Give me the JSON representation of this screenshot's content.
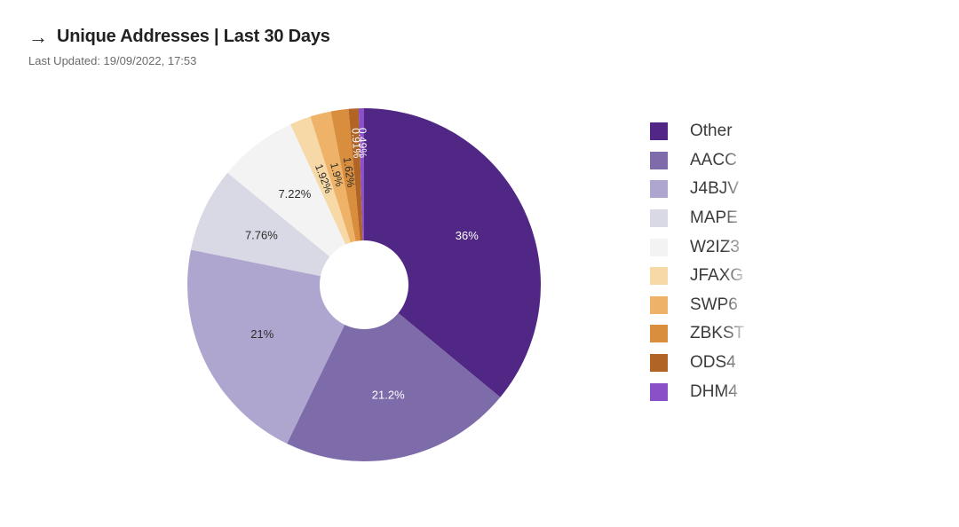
{
  "header": {
    "arrow_icon": "arrow-right-icon",
    "title": "Unique Addresses | Last 30 Days",
    "last_updated": "Last Updated: 19/09/2022, 17:53"
  },
  "chart_data": {
    "type": "pie",
    "style": "donut",
    "labels": [
      "Other",
      "AACC",
      "J4BJV",
      "MAPE",
      "W2IZ3",
      "JFAXG",
      "SWP6",
      "ZBKST",
      "ODS4",
      "DHM4"
    ],
    "values": [
      36,
      21.2,
      21,
      7.76,
      7.22,
      1.92,
      1.9,
      1.62,
      0.91,
      0.49
    ],
    "value_labels": [
      "36%",
      "21.2%",
      "21%",
      "7.76%",
      "7.22%",
      "1.92%",
      "1.9%",
      "1.62%",
      "0.91%",
      "0.49%"
    ],
    "colors": [
      "#512785",
      "#7e6ba9",
      "#afa6cf",
      "#d9d8e5",
      "#f3f3f3",
      "#f6d9a6",
      "#eeb268",
      "#d98e3e",
      "#b06425",
      "#8a50c8"
    ],
    "label_colors": [
      "#ffffff",
      "#ffffff",
      "#2c2c2c",
      "#2c2c2c",
      "#2c2c2c",
      "#2c2c2c",
      "#2c2c2c",
      "#2c2c2c",
      "#ffffff",
      "#ffffff"
    ],
    "legend_position": "right"
  }
}
